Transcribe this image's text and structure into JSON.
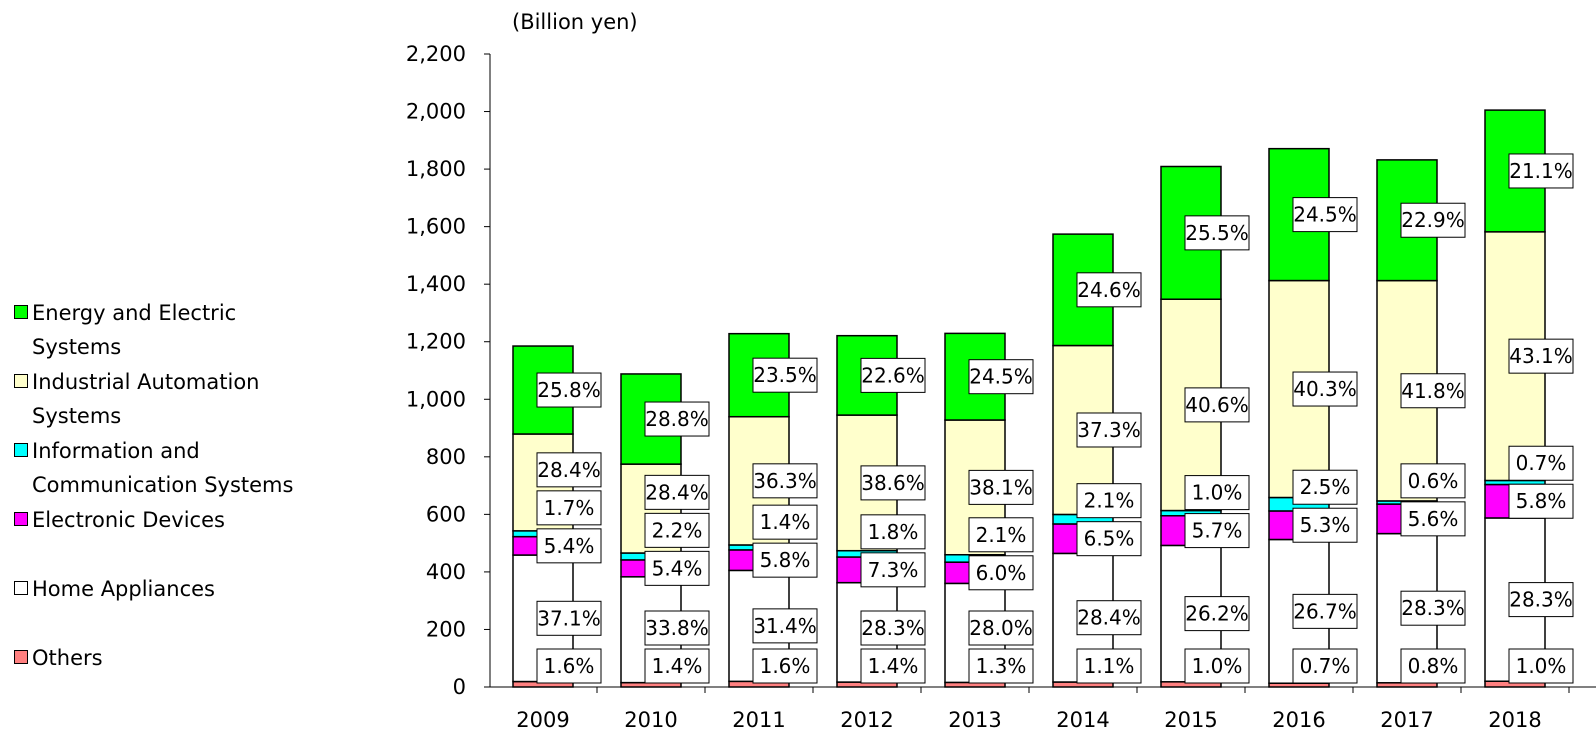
{
  "chart_data": {
    "type": "bar",
    "stacked": true,
    "unit_label": "(Billion yen)",
    "categories": [
      "2009",
      "2010",
      "2011",
      "2012",
      "2013",
      "2014",
      "2015",
      "2016",
      "2017",
      "2018"
    ],
    "totals": [
      1185,
      1088,
      1228,
      1221,
      1229,
      1574,
      1809,
      1871,
      1832,
      2005
    ],
    "ylim": [
      0,
      2200
    ],
    "yticks": [
      0,
      200,
      400,
      600,
      800,
      1000,
      1200,
      1400,
      1600,
      1800,
      2000,
      2200
    ],
    "ytick_labels": [
      "0",
      "200",
      "400",
      "600",
      "800",
      "1,000",
      "1,200",
      "1,400",
      "1,600",
      "1,800",
      "2,000",
      "2,200"
    ],
    "series": [
      {
        "name": "Others",
        "color": "#ff8080",
        "labels": [
          "1.6%",
          "1.4%",
          "1.6%",
          "1.4%",
          "1.3%",
          "1.1%",
          "1.0%",
          "0.7%",
          "0.8%",
          "1.0%"
        ]
      },
      {
        "name": "Home Appliances",
        "color": "#ffffff",
        "labels": [
          "37.1%",
          "33.8%",
          "31.4%",
          "28.3%",
          "28.0%",
          "28.4%",
          "26.2%",
          "26.7%",
          "28.3%",
          "28.3%"
        ]
      },
      {
        "name": "Electronic Devices",
        "color": "#ff00ff",
        "labels": [
          "5.4%",
          "5.4%",
          "5.8%",
          "7.3%",
          "6.0%",
          "6.5%",
          "5.7%",
          "5.3%",
          "5.6%",
          "5.8%"
        ]
      },
      {
        "name": "Information and Communication Systems",
        "color": "#00ffff",
        "labels": [
          "1.7%",
          "2.2%",
          "1.4%",
          "1.8%",
          "2.1%",
          "2.1%",
          "1.0%",
          "2.5%",
          "0.6%",
          "0.7%"
        ]
      },
      {
        "name": "Industrial Automation Systems",
        "color": "#ffffcc",
        "labels": [
          "28.4%",
          "28.4%",
          "36.3%",
          "38.6%",
          "38.1%",
          "37.3%",
          "40.6%",
          "40.3%",
          "41.8%",
          "43.1%"
        ]
      },
      {
        "name": "Energy and Electric Systems",
        "color": "#00ff00",
        "labels": [
          "25.8%",
          "28.8%",
          "23.5%",
          "22.6%",
          "24.5%",
          "24.6%",
          "25.5%",
          "24.5%",
          "22.9%",
          "21.1%"
        ]
      }
    ],
    "legend": [
      {
        "lines": [
          "Energy and Electric",
          "Systems"
        ],
        "color": "#00ff00"
      },
      {
        "lines": [
          "Industrial Automation",
          "Systems"
        ],
        "color": "#ffffcc"
      },
      {
        "lines": [
          "Information and",
          "Communication Systems"
        ],
        "color": "#00ffff"
      },
      {
        "lines": [
          "Electronic Devices"
        ],
        "color": "#ff00ff"
      },
      {
        "lines": [
          "Home Appliances"
        ],
        "color": "#ffffff"
      },
      {
        "lines": [
          "Others"
        ],
        "color": "#ff8080"
      }
    ],
    "legend_position": "left",
    "grid": false
  }
}
